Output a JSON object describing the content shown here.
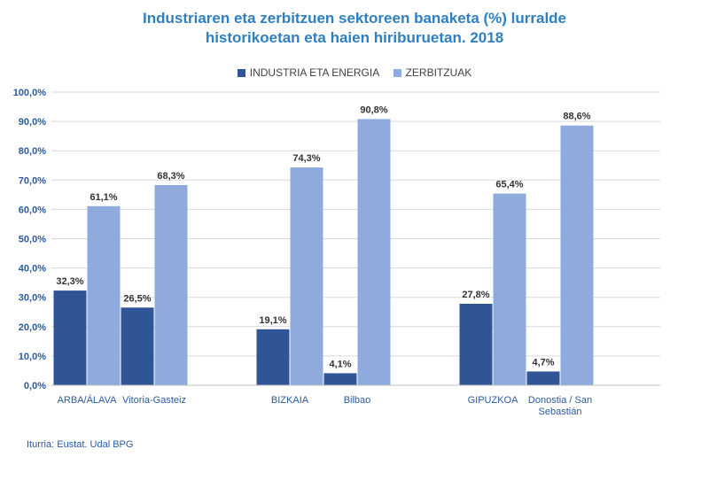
{
  "title_line1": "Industriaren eta zerbitzuen sektoreen banaketa (%) lurralde",
  "title_line2": "historikoetan eta haien hiriburuetan. 2018",
  "source": "Iturria: Eustat. Udal BPG",
  "colors": {
    "industria": "#2f5597",
    "zerbitzuak": "#8faadc",
    "title": "#2f7fc1"
  },
  "chart_data": {
    "type": "bar",
    "title": "Industriaren eta zerbitzuen sektoreen banaketa (%) lurralde historikoetan eta haien hiriburuetan. 2018",
    "xlabel": "",
    "ylabel": "",
    "ylim": [
      0,
      100
    ],
    "yticks": [
      "0,0%",
      "10,0%",
      "20,0%",
      "30,0%",
      "40,0%",
      "50,0%",
      "60,0%",
      "70,0%",
      "80,0%",
      "90,0%",
      "100,0%"
    ],
    "grid": true,
    "legend_position": "top",
    "categories": [
      [
        "ARBA/ÁLAVA"
      ],
      [
        "Vitoria-Gasteiz"
      ],
      [
        "BIZKAIA"
      ],
      [
        "Bilbao"
      ],
      [
        "GIPUZKOA"
      ],
      [
        "Donostia / San",
        "Sebastián"
      ]
    ],
    "series": [
      {
        "name": "INDUSTRIA ETA ENERGIA",
        "values": [
          32.3,
          26.5,
          19.1,
          4.1,
          27.8,
          4.7
        ],
        "labels": [
          "32,3%",
          "26,5%",
          "19,1%",
          "4,1%",
          "27,8%",
          "4,7%"
        ]
      },
      {
        "name": "ZERBITZUAK",
        "values": [
          61.1,
          68.3,
          74.3,
          90.8,
          65.4,
          88.6
        ],
        "labels": [
          "61,1%",
          "68,3%",
          "74,3%",
          "90,8%",
          "65,4%",
          "88,6%"
        ]
      }
    ]
  }
}
